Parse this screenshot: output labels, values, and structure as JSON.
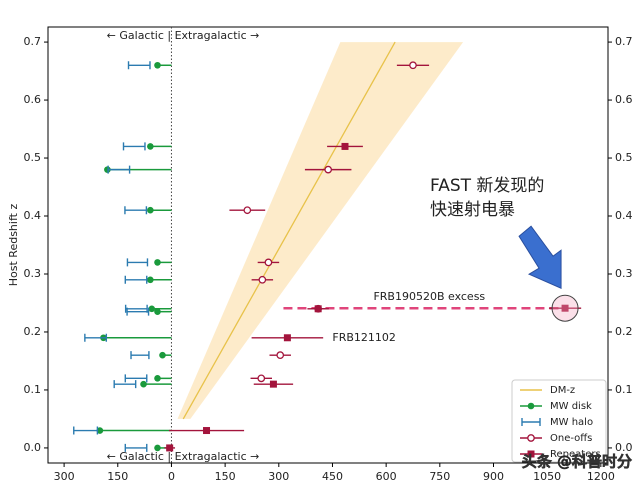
{
  "chart_data": {
    "type": "scatter",
    "ylabel": "Host Redshift z",
    "top_annotation": "← Galactic | Extragalactic →",
    "xlim": [
      -345,
      1220
    ],
    "ylim": [
      -0.026,
      0.726
    ],
    "xticks": [
      {
        "value": -300,
        "label": "300"
      },
      {
        "value": -150,
        "label": "150"
      },
      0,
      150,
      300,
      450,
      600,
      750,
      900,
      1050,
      1200
    ],
    "yticks": [
      {
        "value": 0,
        "label": "0.0"
      },
      0.1,
      0.2,
      0.3,
      0.4,
      0.5,
      0.6,
      0.7
    ],
    "dmz": {
      "name": "DM-z",
      "color": "#e8c24a",
      "x": [
        33,
        625
      ],
      "values": [
        0.05,
        0.7
      ],
      "band_low": [
        17,
        472
      ],
      "band_high": [
        53,
        815
      ],
      "band_color": "#fde6bd"
    },
    "series": [
      {
        "name": "MW disk",
        "color": "#1a9a3c",
        "marker": "disk",
        "values": [
          0.66,
          0.52,
          0.48,
          0.41,
          0.32,
          0.29,
          0.24,
          0.235,
          0.19,
          0.16,
          0.12,
          0.11,
          0.03,
          0.0
        ],
        "x": [
          -39,
          -59,
          -179,
          -59,
          -39,
          -59,
          -55,
          -39,
          -190,
          -25,
          -39,
          -78,
          -200,
          -39
        ]
      },
      {
        "name": "MW halo",
        "color": "#2b7bb0",
        "marker": "halo",
        "values": [
          0.66,
          0.52,
          0.48,
          0.41,
          0.32,
          0.29,
          0.24,
          0.235,
          0.19,
          0.16,
          0.12,
          0.11,
          0.03,
          0.0
        ],
        "x": [
          -90,
          -104,
          -147,
          -100,
          -95,
          -99,
          -98,
          -94,
          -212,
          -88,
          -99,
          -130,
          -240,
          -99
        ],
        "xerr": [
          30,
          30,
          30,
          30,
          28,
          30,
          30,
          30,
          30,
          25,
          30,
          30,
          33,
          30
        ]
      },
      {
        "name": "One-offs",
        "color": "#a3143c",
        "marker": "open",
        "values": [
          0.66,
          0.48,
          0.41,
          0.32,
          0.29,
          0.24,
          0.16,
          0.12
        ],
        "x": [
          675,
          438,
          212,
          271,
          254,
          410,
          304,
          251
        ],
        "xerr": [
          45,
          65,
          50,
          30,
          30,
          30,
          30,
          30
        ]
      },
      {
        "name": "Repeaters",
        "color": "#a3143c",
        "marker": "square",
        "values": [
          0.52,
          0.24,
          0.19,
          0.11,
          0.03,
          0.0,
          0.241
        ],
        "x": [
          485,
          410,
          324,
          285,
          98,
          -5,
          1100
        ],
        "xerr": [
          50,
          20,
          100,
          55,
          105,
          15,
          45
        ]
      }
    ],
    "excess": {
      "label": "FRB190520B excess",
      "x": [
        313,
        1100
      ],
      "value": 0.241,
      "color": "#e0457b"
    },
    "frb121102_label": "FRB121102",
    "fast_label": [
      "FAST 新发现的",
      "快速射电暴"
    ],
    "watermark": "头条 @科普时分"
  }
}
